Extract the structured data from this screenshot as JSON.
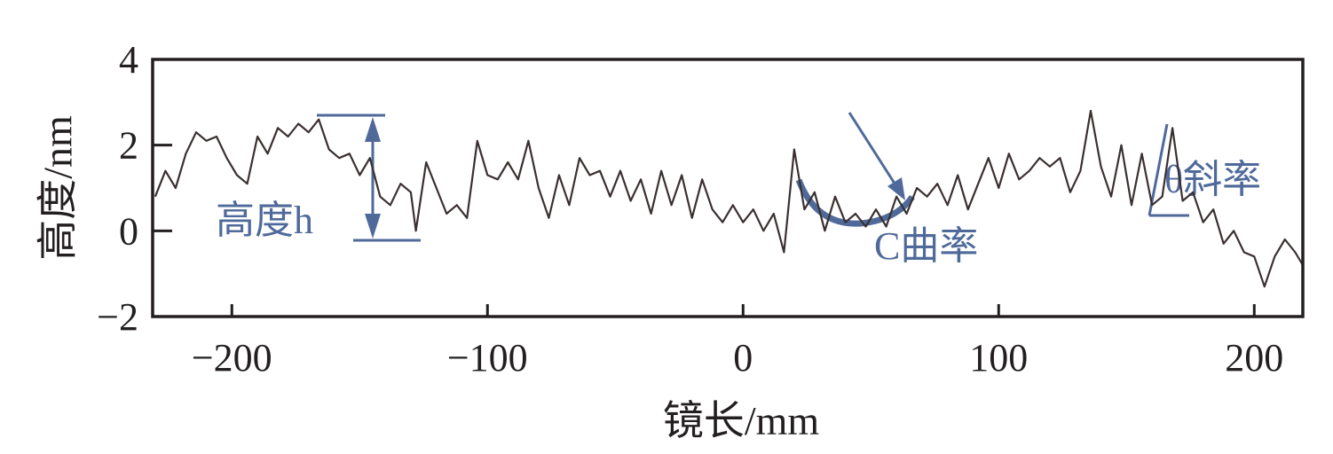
{
  "chart_data": {
    "type": "line",
    "x_label": "镜长/mm",
    "y_label": "高度/nm",
    "xlim": [
      -231,
      219
    ],
    "ylim": [
      -2,
      4
    ],
    "xticks": [
      {
        "value": -200,
        "label": "−200"
      },
      {
        "value": -100,
        "label": "−100"
      },
      0,
      100,
      200
    ],
    "yticks": [
      {
        "value": -2,
        "label": "−2"
      },
      0,
      2,
      4
    ],
    "color": "#3a3030",
    "annotations": [
      "高度h",
      "C曲率",
      "θ斜率"
    ],
    "x": [
      -230,
      -226,
      -222,
      -218,
      -214,
      -210,
      -206,
      -202,
      -198,
      -194,
      -190,
      -186,
      -182,
      -178,
      -174,
      -170,
      -166,
      -162,
      -158,
      -154,
      -150,
      -146,
      -142,
      -138,
      -134,
      -130,
      -128,
      -124,
      -120,
      -116,
      -112,
      -108,
      -104,
      -100,
      -96,
      -92,
      -88,
      -84,
      -80,
      -76,
      -72,
      -68,
      -64,
      -60,
      -56,
      -52,
      -48,
      -44,
      -40,
      -36,
      -32,
      -28,
      -24,
      -20,
      -16,
      -12,
      -8,
      -4,
      0,
      4,
      8,
      12,
      16,
      20,
      24,
      28,
      32,
      36,
      40,
      44,
      48,
      52,
      56,
      60,
      64,
      68,
      72,
      76,
      80,
      84,
      88,
      92,
      96,
      100,
      104,
      108,
      112,
      116,
      120,
      124,
      128,
      132,
      136,
      140,
      144,
      148,
      152,
      156,
      160,
      164,
      168,
      172,
      176,
      180,
      184,
      188,
      192,
      196,
      200,
      204,
      208,
      212,
      216,
      219
    ],
    "values": [
      0.8,
      1.4,
      1.0,
      1.8,
      2.3,
      2.1,
      2.2,
      1.7,
      1.3,
      1.1,
      2.2,
      1.8,
      2.4,
      2.2,
      2.5,
      2.3,
      2.6,
      1.9,
      1.7,
      1.8,
      1.3,
      1.7,
      0.8,
      0.6,
      1.1,
      0.9,
      0.0,
      1.6,
      1.0,
      0.4,
      0.6,
      0.3,
      2.1,
      1.3,
      1.2,
      1.6,
      1.2,
      2.1,
      1.0,
      0.3,
      1.3,
      0.6,
      1.7,
      1.3,
      1.4,
      0.8,
      1.4,
      0.7,
      1.2,
      0.4,
      1.4,
      0.6,
      1.3,
      0.3,
      1.2,
      0.5,
      0.2,
      0.6,
      0.2,
      0.5,
      0.0,
      0.4,
      -0.5,
      1.9,
      0.5,
      0.9,
      0.0,
      0.8,
      0.2,
      0.4,
      0.1,
      0.5,
      0.1,
      0.8,
      0.4,
      1.0,
      0.8,
      1.1,
      0.6,
      1.3,
      0.5,
      1.1,
      1.7,
      1.0,
      1.8,
      1.2,
      1.4,
      1.7,
      1.5,
      1.7,
      0.9,
      1.4,
      2.8,
      1.5,
      0.8,
      2.0,
      0.6,
      1.8,
      0.6,
      0.8,
      2.4,
      0.7,
      0.9,
      0.2,
      0.5,
      -0.3,
      0.0,
      -0.5,
      -0.6,
      -1.3,
      -0.6,
      -0.2,
      -0.5,
      -0.8
    ]
  }
}
